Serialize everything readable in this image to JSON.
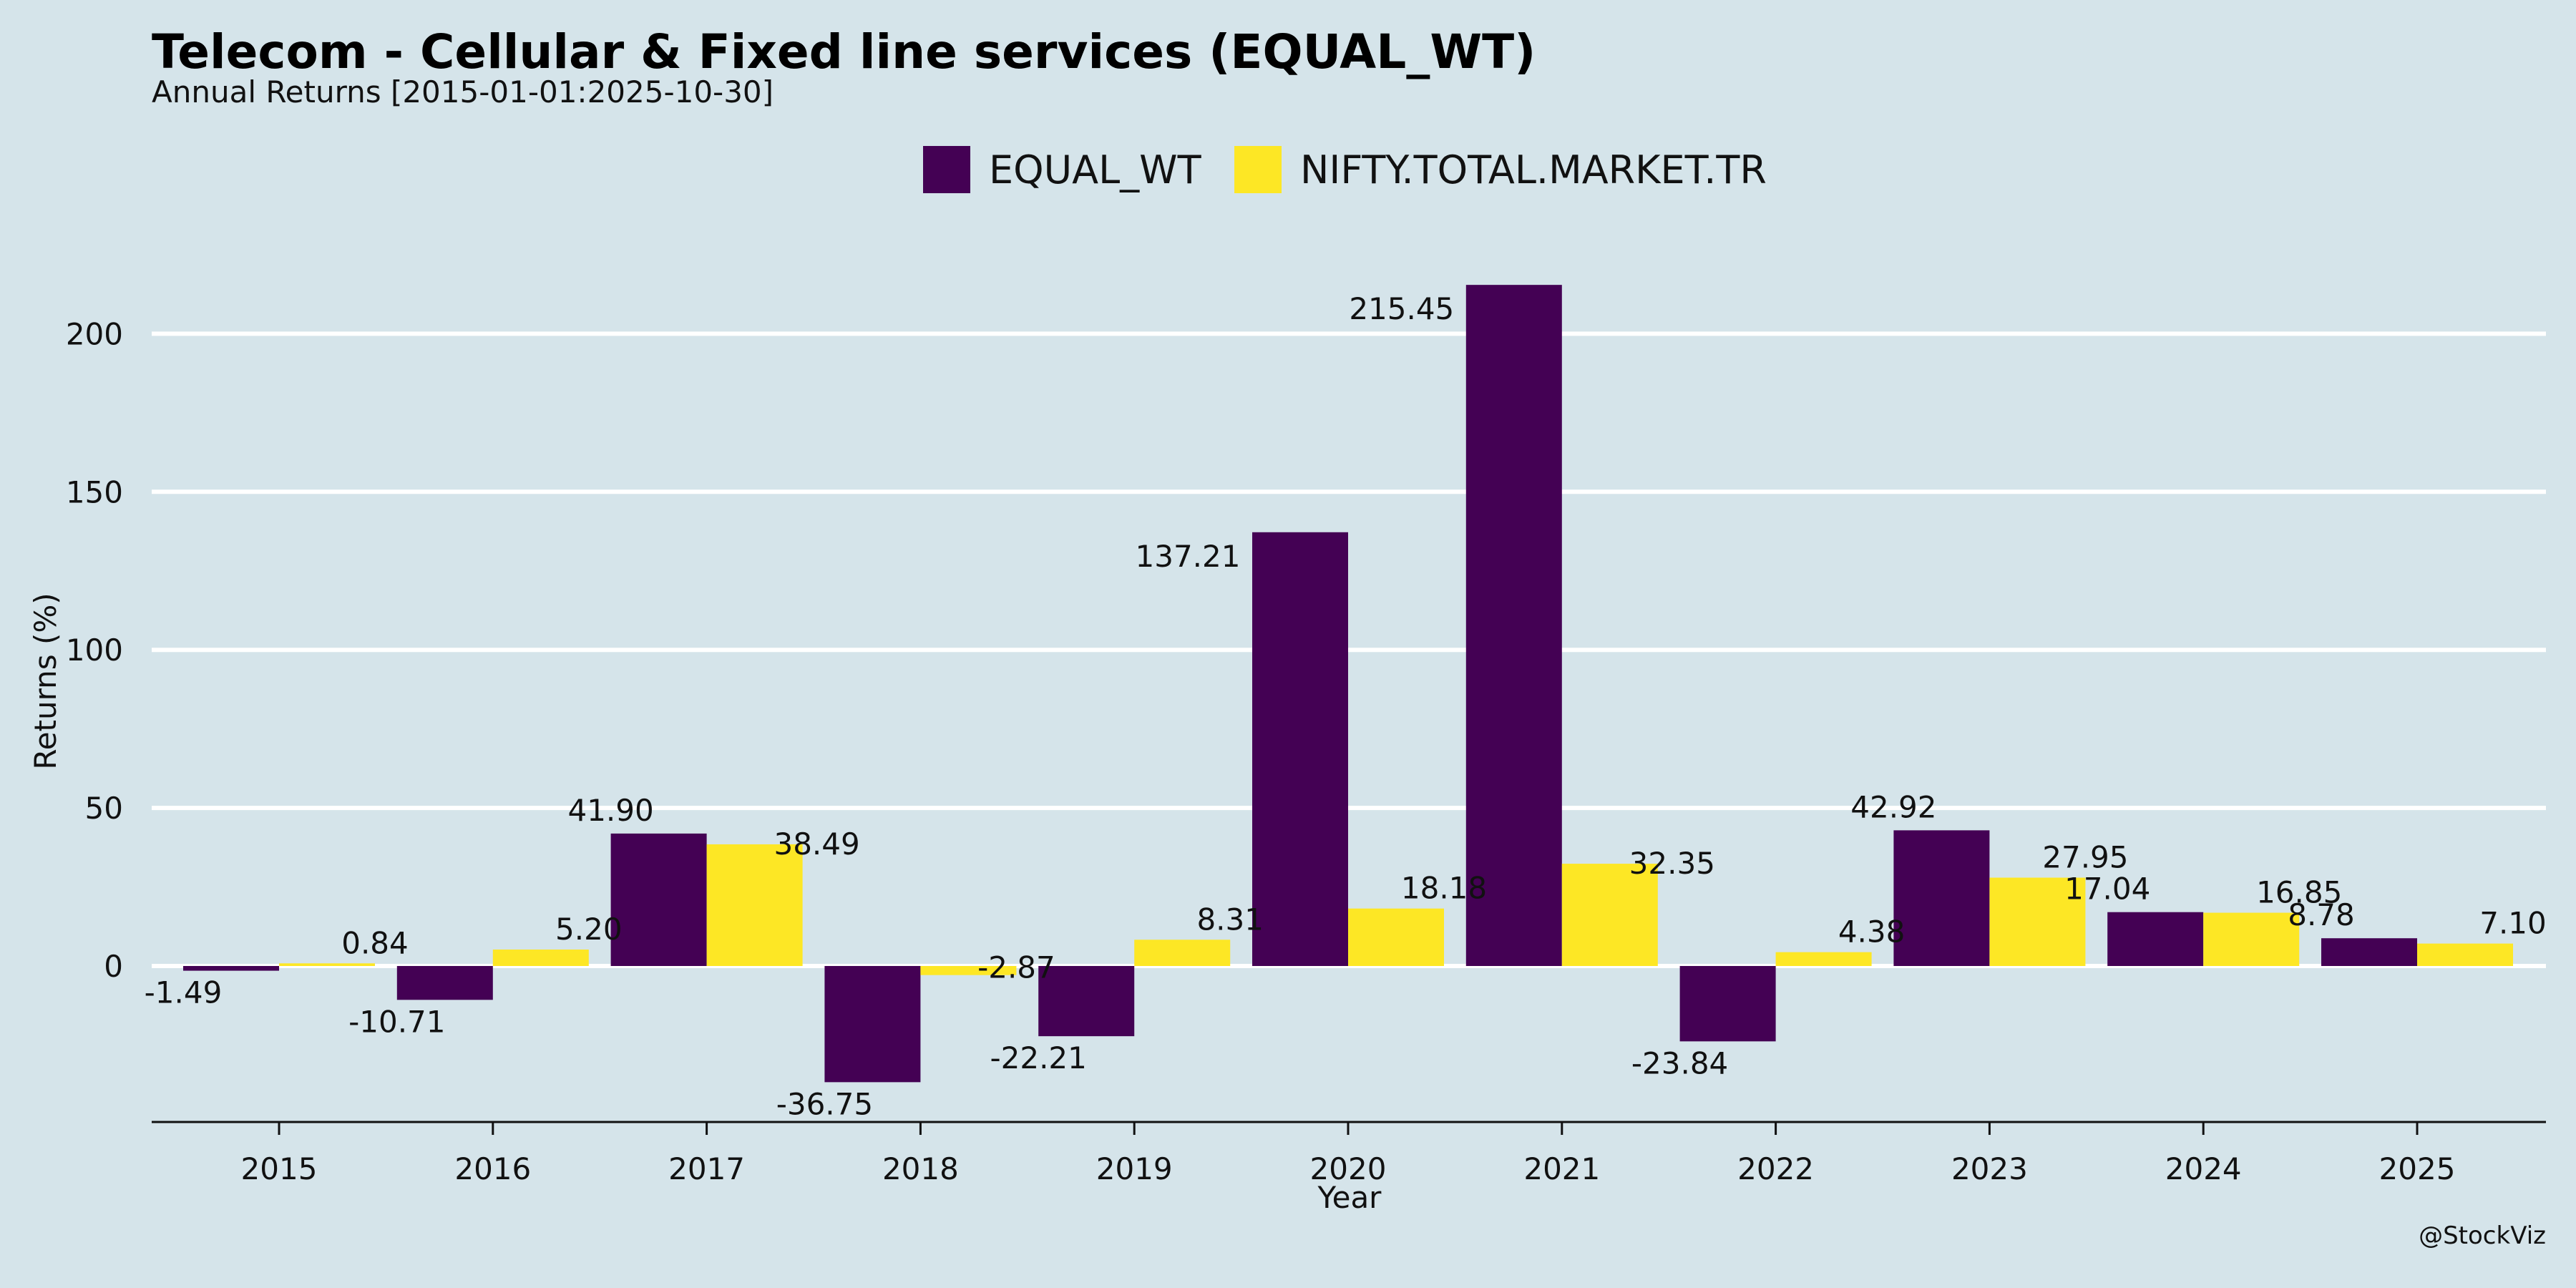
{
  "title": "Telecom - Cellular & Fixed line services (EQUAL_WT)",
  "subtitle": "Annual Returns [2015-01-01:2025-10-30]",
  "credit": "@StockViz",
  "colors": {
    "background": "#d5e4ea",
    "equal_wt": "#440154",
    "benchmark": "#fde725",
    "grid": "#ffffff"
  },
  "chart_data": {
    "type": "bar",
    "categories": [
      "2015",
      "2016",
      "2017",
      "2018",
      "2019",
      "2020",
      "2021",
      "2022",
      "2023",
      "2024",
      "2025"
    ],
    "series": [
      {
        "name": "EQUAL_WT",
        "values": [
          -1.49,
          -10.71,
          41.9,
          -36.75,
          -22.21,
          137.21,
          215.45,
          -23.84,
          42.92,
          17.04,
          8.78
        ],
        "labels": [
          "-1.49",
          "-10.71",
          "41.90",
          "-36.75",
          "-22.21",
          "137.21",
          "215.45",
          "-23.84",
          "42.92",
          "17.04",
          "8.78"
        ]
      },
      {
        "name": "NIFTY.TOTAL.MARKET.TR",
        "values": [
          0.84,
          5.2,
          38.49,
          -2.87,
          8.31,
          18.18,
          32.35,
          4.38,
          27.95,
          16.85,
          7.1
        ],
        "labels": [
          "0.84",
          "5.20",
          "38.49",
          "-2.87",
          "8.31",
          "18.18",
          "32.35",
          "4.38",
          "27.95",
          "16.85",
          "7.10"
        ]
      }
    ],
    "xlabel": "Year",
    "ylabel": "Returns (%)",
    "yticks": [
      0,
      50,
      100,
      150,
      200
    ],
    "ylim": [
      -49,
      226
    ],
    "grid": "horizontal",
    "legend_position": "top-center"
  }
}
